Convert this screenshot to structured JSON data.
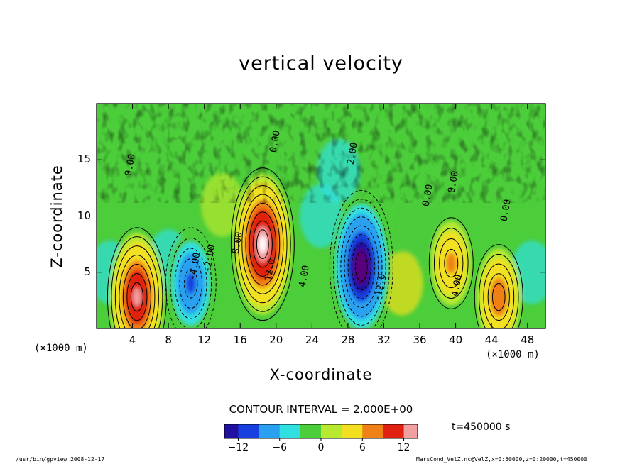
{
  "chart_data": {
    "type": "heatmap",
    "title": "vertical velocity",
    "xlabel": "X-coordinate",
    "ylabel": "Z-coordinate",
    "x_unit": "(×1000 m)",
    "y_unit": "(×1000 m)",
    "xlim": [
      0,
      50
    ],
    "ylim": [
      0,
      20
    ],
    "x_ticks": [
      "4",
      "8",
      "12",
      "16",
      "20",
      "24",
      "28",
      "32",
      "36",
      "40",
      "44",
      "48"
    ],
    "y_ticks": [
      "5",
      "10",
      "15"
    ],
    "contour_interval": "CONTOUR INTERVAL = 2.000E+00",
    "colorbar": {
      "range": [
        -14,
        14
      ],
      "ticks": [
        "−12",
        "−6",
        "0",
        "6",
        "12"
      ]
    },
    "contour_labels": [
      "0.00",
      "-4.00",
      "-2.00",
      "8.00",
      "12.0",
      "4.00",
      "2.00",
      "-12.0",
      "4.00",
      "0.00",
      "0.00",
      "0.00",
      "0.00"
    ],
    "features": [
      {
        "x": 4.5,
        "z": 2.8,
        "value": 14
      },
      {
        "x": 10.5,
        "z": 4.0,
        "value": -10
      },
      {
        "x": 18.5,
        "z": 7.5,
        "value": 16
      },
      {
        "x": 29.5,
        "z": 5.5,
        "value": -16
      },
      {
        "x": 39.5,
        "z": 5.8,
        "value": 7
      },
      {
        "x": 44.8,
        "z": 2.8,
        "value": 9
      }
    ],
    "time_label": "t=450000 s"
  },
  "footer": {
    "left": "/usr/bin/gpview   2008-12-17",
    "right": "MarsCond_VelZ.nc@VelZ,x=0:50000,z=0:20000,t=450000"
  }
}
